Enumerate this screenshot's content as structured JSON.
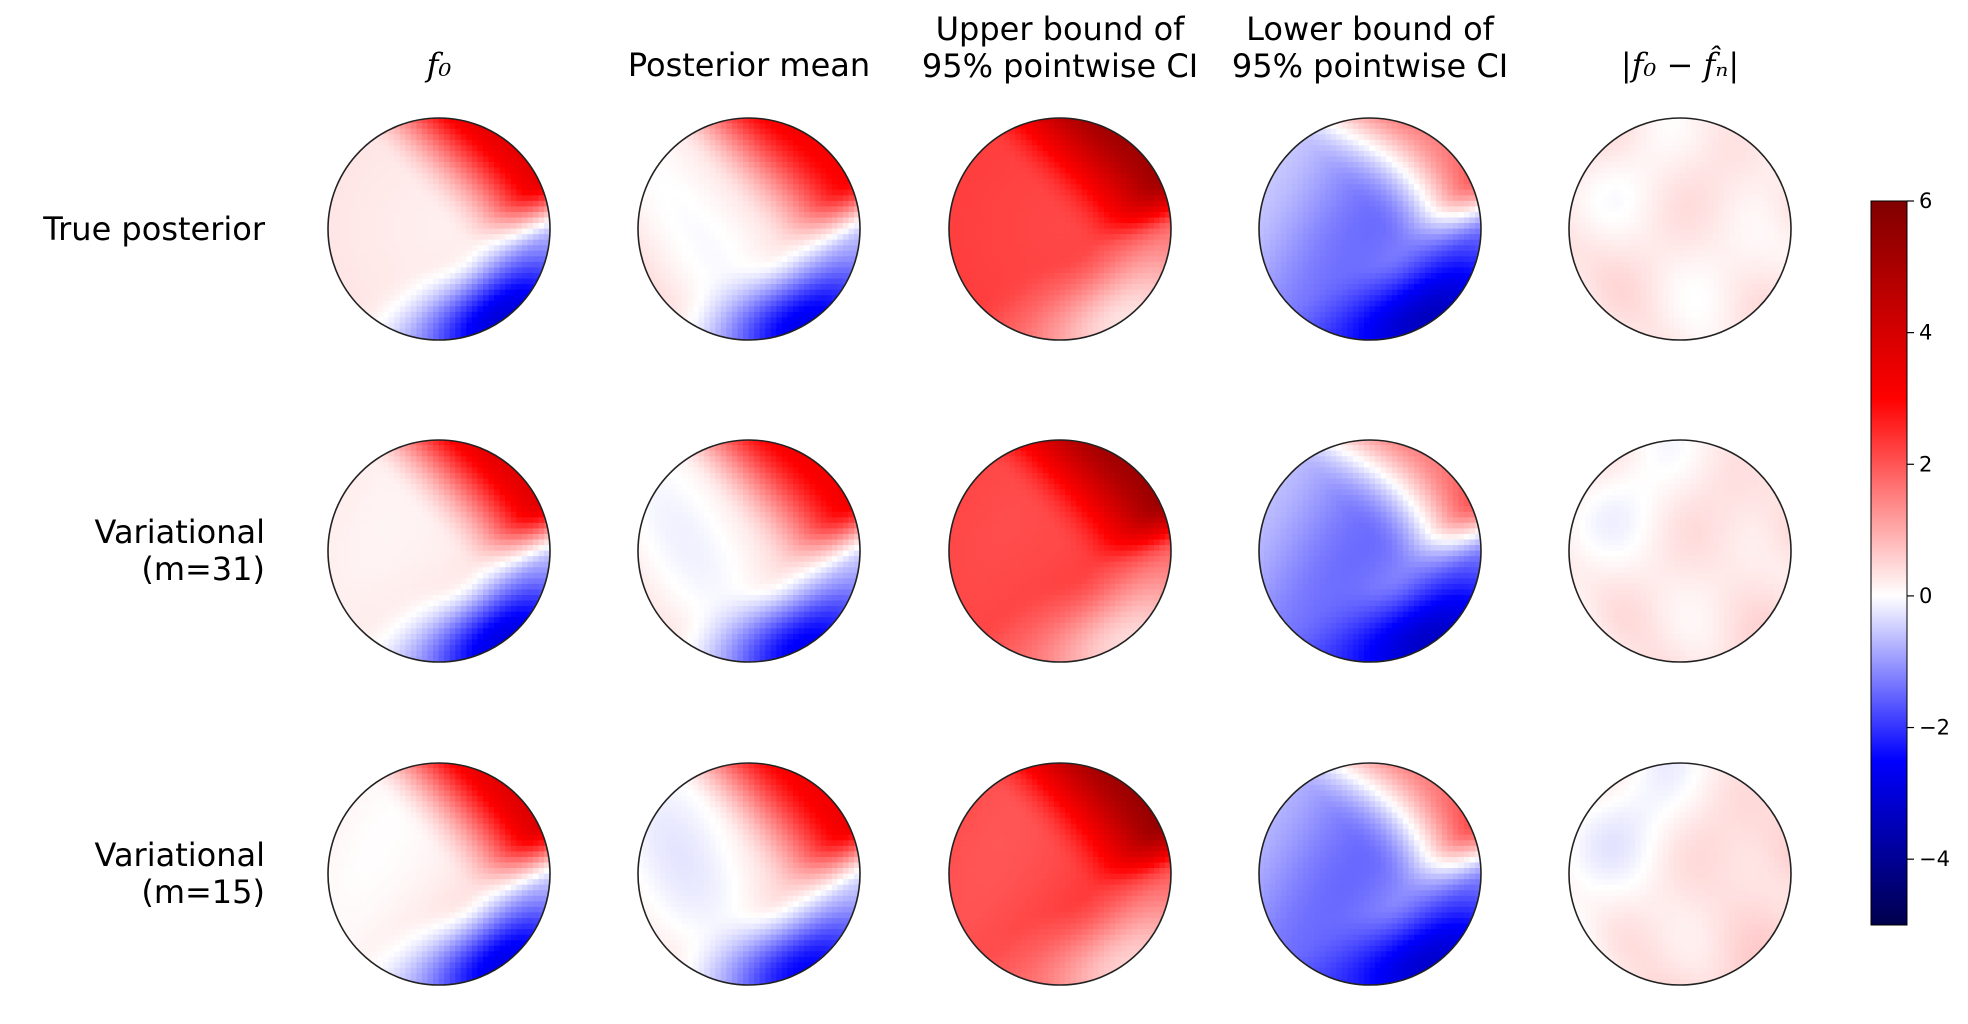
{
  "chart_data": {
    "type": "heatmap",
    "columns": [
      {
        "key": "f0",
        "title_lines": [
          "f₀"
        ]
      },
      {
        "key": "mean",
        "title_lines": [
          "Posterior mean"
        ]
      },
      {
        "key": "upper",
        "title_lines": [
          "Upper bound of",
          "95% pointwise CI"
        ]
      },
      {
        "key": "lower",
        "title_lines": [
          "Lower bound of",
          "95% pointwise CI"
        ]
      },
      {
        "key": "abs_error",
        "title_lines": [
          "|f₀ − f̂ₙ|"
        ]
      }
    ],
    "rows": [
      {
        "key": "true",
        "label_lines": [
          "True posterior"
        ]
      },
      {
        "key": "var31",
        "label_lines": [
          "Variational",
          "(m=31)"
        ]
      },
      {
        "key": "var15",
        "label_lines": [
          "Variational",
          "(m=15)"
        ]
      }
    ],
    "colorbar": {
      "colormap": "seismic",
      "vmin": -5,
      "vmax": 6,
      "ticks": [
        6,
        4,
        2,
        0,
        -2,
        -4
      ],
      "tick_labels": [
        "6",
        "4",
        "2",
        "0",
        "−2",
        "−4"
      ],
      "colors": {
        "min": "#00004c",
        "blue": "#0000ff",
        "mid": "#ffffff",
        "red": "#ff0000",
        "max": "#800000"
      }
    },
    "panel_values_approx": {
      "f0": {
        "upper_right": 3.5,
        "lower_right": -2.0,
        "elsewhere": 0.6
      },
      "mean": {
        "upper_right": 3.0,
        "lower_right": -2.0,
        "elsewhere": 0.6
      },
      "upper": {
        "upper_right": 4.5,
        "lower_right": 0.5,
        "elsewhere": 2.2
      },
      "lower": {
        "upper_right": 2.0,
        "lower_right": -3.5,
        "elsewhere": -0.6
      },
      "abs_error": {
        "range": [
          0,
          0.6
        ]
      }
    }
  }
}
